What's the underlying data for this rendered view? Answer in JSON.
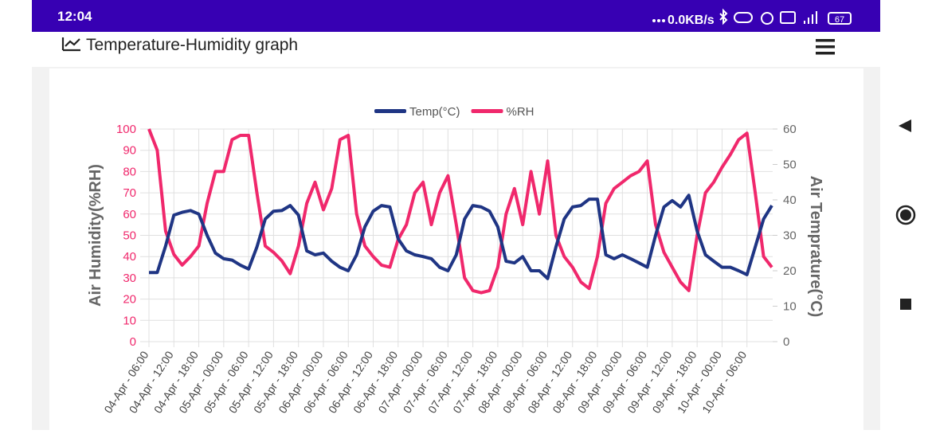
{
  "status": {
    "time": "12:04",
    "speed": "0.0KB/s",
    "battery": "67"
  },
  "header": {
    "title": "Temperature-Humidity graph"
  },
  "chart_data": {
    "type": "line",
    "categories": [
      "04-Apr - 06:00",
      null,
      null,
      "04-Apr - 12:00",
      null,
      null,
      "04-Apr - 18:00",
      null,
      null,
      "05-Apr - 00:00",
      null,
      null,
      "05-Apr - 06:00",
      null,
      null,
      "05-Apr - 12:00",
      null,
      null,
      "05-Apr - 18:00",
      null,
      null,
      "06-Apr - 00:00",
      null,
      null,
      "06-Apr - 06:00",
      null,
      null,
      "06-Apr - 12:00",
      null,
      null,
      "06-Apr - 18:00",
      null,
      null,
      "07-Apr - 00:00",
      null,
      null,
      "07-Apr - 06:00",
      null,
      null,
      "07-Apr - 12:00",
      null,
      null,
      "07-Apr - 18:00",
      null,
      null,
      "08-Apr - 00:00",
      null,
      null,
      "08-Apr - 06:00",
      null,
      null,
      "08-Apr - 12:00",
      null,
      null,
      "08-Apr - 18:00",
      null,
      null,
      "09-Apr - 00:00",
      null,
      null,
      "09-Apr - 06:00",
      null,
      null,
      "09-Apr - 12:00",
      null,
      null,
      "09-Apr - 18:00",
      null,
      null,
      "10-Apr - 00:00",
      null,
      null,
      "10-Apr - 06:00",
      null,
      null,
      null
    ],
    "y_label": "Air Humidity(%RH)",
    "y2_label": "Air Temprature(°C)",
    "ylim": [
      0,
      100
    ],
    "yticks": [
      0,
      10,
      20,
      30,
      40,
      50,
      60,
      70,
      80,
      90,
      100
    ],
    "y2lim": [
      0,
      60
    ],
    "y2ticks": [
      0,
      10,
      20,
      30,
      40,
      50,
      60
    ],
    "grid": true,
    "legend": "top",
    "series": [
      {
        "name": "Temp(°C)",
        "color": "#1f3584",
        "axis": "y2",
        "values": [
          19.5,
          19.5,
          27,
          35.7,
          36.5,
          37,
          36,
          30,
          25,
          23.4,
          23,
          21.6,
          20.5,
          26.7,
          34.6,
          36.8,
          37,
          38.4,
          35.7,
          25.6,
          24.5,
          25,
          22.7,
          21,
          20,
          24.5,
          32.4,
          36.8,
          38.4,
          38,
          29,
          25.6,
          24.5,
          24,
          23.4,
          21,
          20,
          24.5,
          34.6,
          38.4,
          38,
          36.8,
          32.4,
          22.7,
          22.2,
          24,
          20,
          20,
          17.8,
          26.7,
          34.6,
          38,
          38.4,
          40.2,
          40.2,
          24.5,
          23.4,
          24.5,
          23.4,
          22.2,
          21,
          30,
          38,
          39.8,
          38,
          41.3,
          31.2,
          24.5,
          22.7,
          21,
          21,
          20,
          18.9,
          26.7,
          34.6,
          38.4
        ]
      },
      {
        "name": "%RH",
        "color": "#f0286c",
        "values": [
          100,
          90,
          52,
          41,
          36,
          40,
          45,
          65,
          80,
          80,
          95,
          97,
          97,
          70,
          45,
          42,
          38,
          32,
          45,
          65,
          75,
          62,
          72,
          95,
          97,
          60,
          45,
          40,
          36,
          35,
          48,
          55,
          70,
          75,
          55,
          70,
          78,
          55,
          30,
          24,
          23,
          24,
          35,
          60,
          72,
          55,
          80,
          60,
          85,
          50,
          40,
          35,
          28,
          25,
          40,
          65,
          72,
          75,
          78,
          80,
          85,
          55,
          42,
          35,
          28,
          24,
          50,
          70,
          75,
          82,
          88,
          95,
          98,
          70,
          40,
          35
        ]
      }
    ]
  }
}
